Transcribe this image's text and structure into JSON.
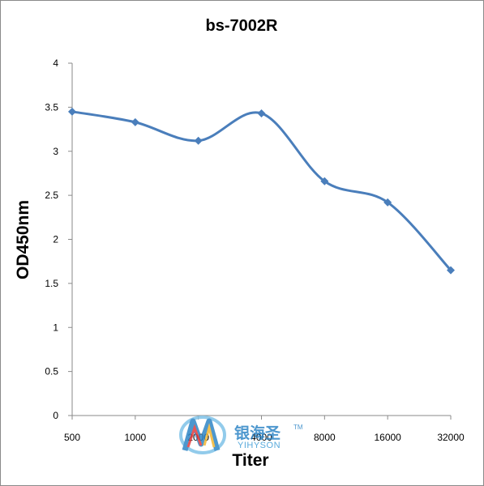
{
  "chart_data": {
    "type": "line",
    "title": "bs-7002R",
    "xlabel": "Titer",
    "ylabel": "OD450nm",
    "categories": [
      "500",
      "1000",
      "2000",
      "4000",
      "8000",
      "16000",
      "32000"
    ],
    "series": [
      {
        "values": [
          3.45,
          3.33,
          3.12,
          3.43,
          2.66,
          2.42,
          1.65
        ],
        "color": "#4a7ebb"
      }
    ],
    "y_ticks": [
      "0",
      "0.5",
      "1",
      "1.5",
      "2",
      "2.5",
      "3",
      "3.5",
      "4"
    ],
    "ylim": [
      0,
      4
    ],
    "grid": false,
    "legend": "none",
    "marker": "diamond",
    "smooth": true
  },
  "watermark": {
    "text_cn": "银海圣",
    "text_en": "YIHYSON",
    "tm": "TM"
  }
}
